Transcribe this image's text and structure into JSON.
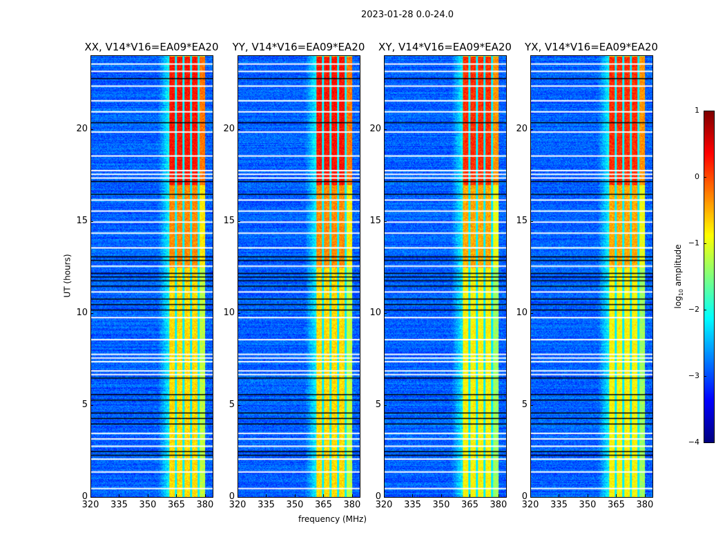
{
  "suptitle": "2023-01-28 0.0-24.0",
  "chart_data": {
    "type": "heatmap",
    "xlabel": "frequency (MHz)",
    "ylabel": "UT (hours)",
    "xlim": [
      320,
      384
    ],
    "ylim": [
      0,
      24
    ],
    "xticks": [
      "320",
      "335",
      "350",
      "365",
      "380"
    ],
    "yticks": [
      "0",
      "5",
      "10",
      "15",
      "20"
    ],
    "panels": [
      {
        "title": "XX, V14*V16=EA09*EA20"
      },
      {
        "title": "YY, V14*V16=EA09*EA20"
      },
      {
        "title": "XY, V14*V16=EA09*EA20"
      },
      {
        "title": "YX, V14*V16=EA09*EA20"
      }
    ],
    "colorbar": {
      "label": "log10 amplitude",
      "label_main": "log",
      "label_sub": "10",
      "label_rest": " amplitude",
      "range": [
        -4,
        1
      ],
      "ticks": [
        "1",
        "0",
        "−1",
        "−2",
        "−3",
        "−4"
      ],
      "colormap": "jet"
    },
    "model": {
      "background_log_amp": -2.9,
      "band_mhz": [
        361,
        380
      ],
      "band_gap_lines_mhz": [
        364.5,
        368.5,
        372.5,
        376.5
      ],
      "band_log_amp_by_hour": [
        [
          0,
          12.5,
          -0.7
        ],
        [
          12.5,
          17,
          -0.3
        ],
        [
          17,
          24,
          0.3
        ]
      ],
      "flagged_white_hours": [
        0.5,
        1.4,
        2.1,
        2.8,
        3.2,
        3.5,
        6.7,
        6.9,
        7.4,
        7.6,
        7.8,
        8.6,
        9.8,
        11.2,
        12.6,
        13.6,
        14.4,
        15.0,
        15.6,
        16.2,
        17.4,
        17.6,
        17.8,
        18.6,
        19.9,
        21.0,
        21.6,
        22.4,
        23.2,
        23.6
      ],
      "flagged_black_hours": [
        2.3,
        2.5,
        4.0,
        4.3,
        4.6,
        5.3,
        5.6,
        6.5,
        10.2,
        10.5,
        10.8,
        11.5,
        11.8,
        12.0,
        12.2,
        12.9,
        13.1,
        16.5,
        17.2,
        20.4,
        22.8
      ]
    }
  }
}
